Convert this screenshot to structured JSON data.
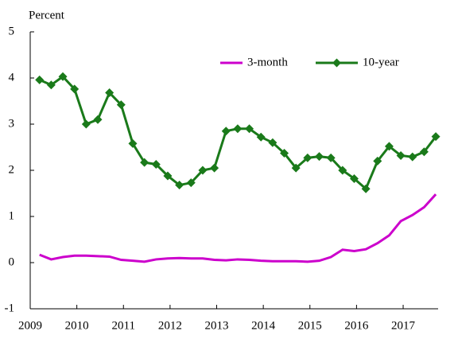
{
  "chart_data": {
    "type": "line",
    "ylabel": "Percent",
    "x": [
      2009.2,
      2009.45,
      2009.7,
      2009.95,
      2010.2,
      2010.45,
      2010.7,
      2010.95,
      2011.2,
      2011.45,
      2011.7,
      2011.95,
      2012.2,
      2012.45,
      2012.7,
      2012.95,
      2013.2,
      2013.45,
      2013.7,
      2013.95,
      2014.2,
      2014.45,
      2014.7,
      2014.95,
      2015.2,
      2015.45,
      2015.7,
      2015.95,
      2016.2,
      2016.45,
      2016.7,
      2016.95,
      2017.2,
      2017.45,
      2017.7
    ],
    "series": [
      {
        "name": "3-month",
        "color": "#cc00cc",
        "marker": false,
        "values": [
          0.17,
          0.07,
          0.12,
          0.15,
          0.15,
          0.14,
          0.13,
          0.06,
          0.04,
          0.02,
          0.07,
          0.09,
          0.1,
          0.09,
          0.09,
          0.06,
          0.05,
          0.07,
          0.06,
          0.04,
          0.03,
          0.03,
          0.03,
          0.02,
          0.04,
          0.12,
          0.28,
          0.25,
          0.29,
          0.42,
          0.59,
          0.9,
          1.03,
          1.2,
          1.48
        ]
      },
      {
        "name": "10-year",
        "color": "#1a7a1a",
        "marker": true,
        "values": [
          3.96,
          3.85,
          4.03,
          3.76,
          3.0,
          3.1,
          3.68,
          3.42,
          2.58,
          2.17,
          2.13,
          1.88,
          1.68,
          1.73,
          2.0,
          2.05,
          2.85,
          2.9,
          2.9,
          2.72,
          2.6,
          2.37,
          2.05,
          2.27,
          2.3,
          2.27,
          2.0,
          1.82,
          1.6,
          2.2,
          2.52,
          2.32,
          2.29,
          2.4,
          2.73
        ]
      }
    ],
    "xlim": [
      2009,
      2017.75
    ],
    "xticks": [
      2009,
      2010,
      2011,
      2012,
      2013,
      2014,
      2015,
      2016,
      2017
    ],
    "ylim": [
      -1,
      5
    ],
    "yticks": [
      -1,
      0,
      1,
      2,
      3,
      4,
      5
    ],
    "legend": "top-right"
  }
}
